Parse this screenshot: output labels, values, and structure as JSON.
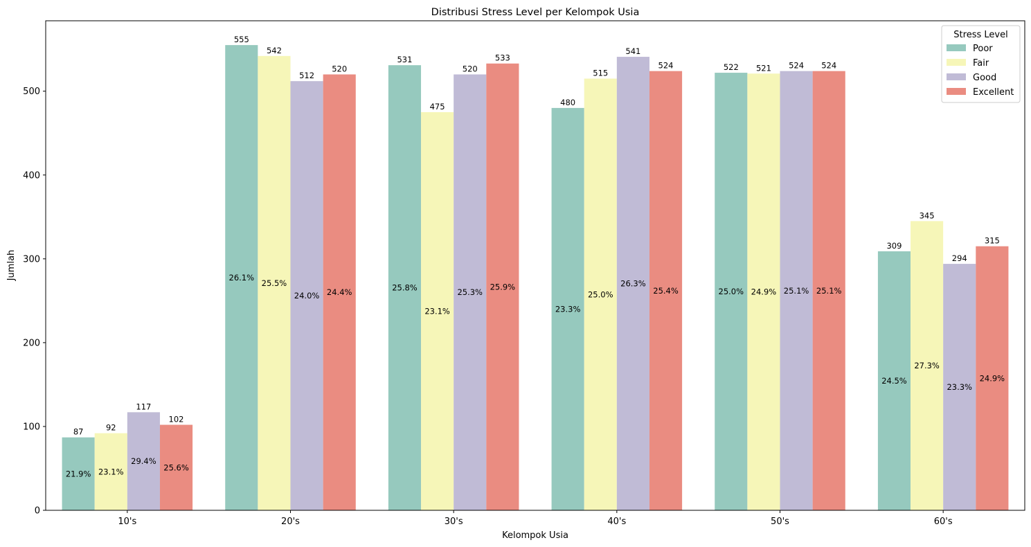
{
  "chart_data": {
    "type": "bar",
    "title": "Distribusi Stress Level per Kelompok Usia",
    "xlabel": "Kelompok Usia",
    "ylabel": "Jumlah",
    "ylim": [
      0,
      584
    ],
    "yticks": [
      0,
      100,
      200,
      300,
      400,
      500
    ],
    "grid": false,
    "legend": {
      "title": "Stress Level",
      "placement": "top-right"
    },
    "categories": [
      "10's",
      "20's",
      "30's",
      "40's",
      "50's",
      "60's"
    ],
    "series": [
      {
        "name": "Poor",
        "color": "#96c9be",
        "values": [
          87,
          555,
          531,
          480,
          522,
          309
        ],
        "percent_labels": [
          "21.9%",
          "26.1%",
          "25.8%",
          "23.3%",
          "25.0%",
          "24.5%"
        ]
      },
      {
        "name": "Fair",
        "color": "#f6f6b8",
        "values": [
          92,
          542,
          475,
          515,
          521,
          345
        ],
        "percent_labels": [
          "23.1%",
          "25.5%",
          "23.1%",
          "25.0%",
          "24.9%",
          "27.3%"
        ]
      },
      {
        "name": "Good",
        "color": "#c0bbd6",
        "values": [
          117,
          512,
          520,
          541,
          524,
          294
        ],
        "percent_labels": [
          "29.4%",
          "24.0%",
          "25.3%",
          "26.3%",
          "25.1%",
          "23.3%"
        ]
      },
      {
        "name": "Excellent",
        "color": "#ea8c81",
        "values": [
          102,
          520,
          533,
          524,
          524,
          315
        ],
        "percent_labels": [
          "25.6%",
          "24.4%",
          "25.9%",
          "25.4%",
          "25.1%",
          "24.9%"
        ]
      }
    ]
  }
}
